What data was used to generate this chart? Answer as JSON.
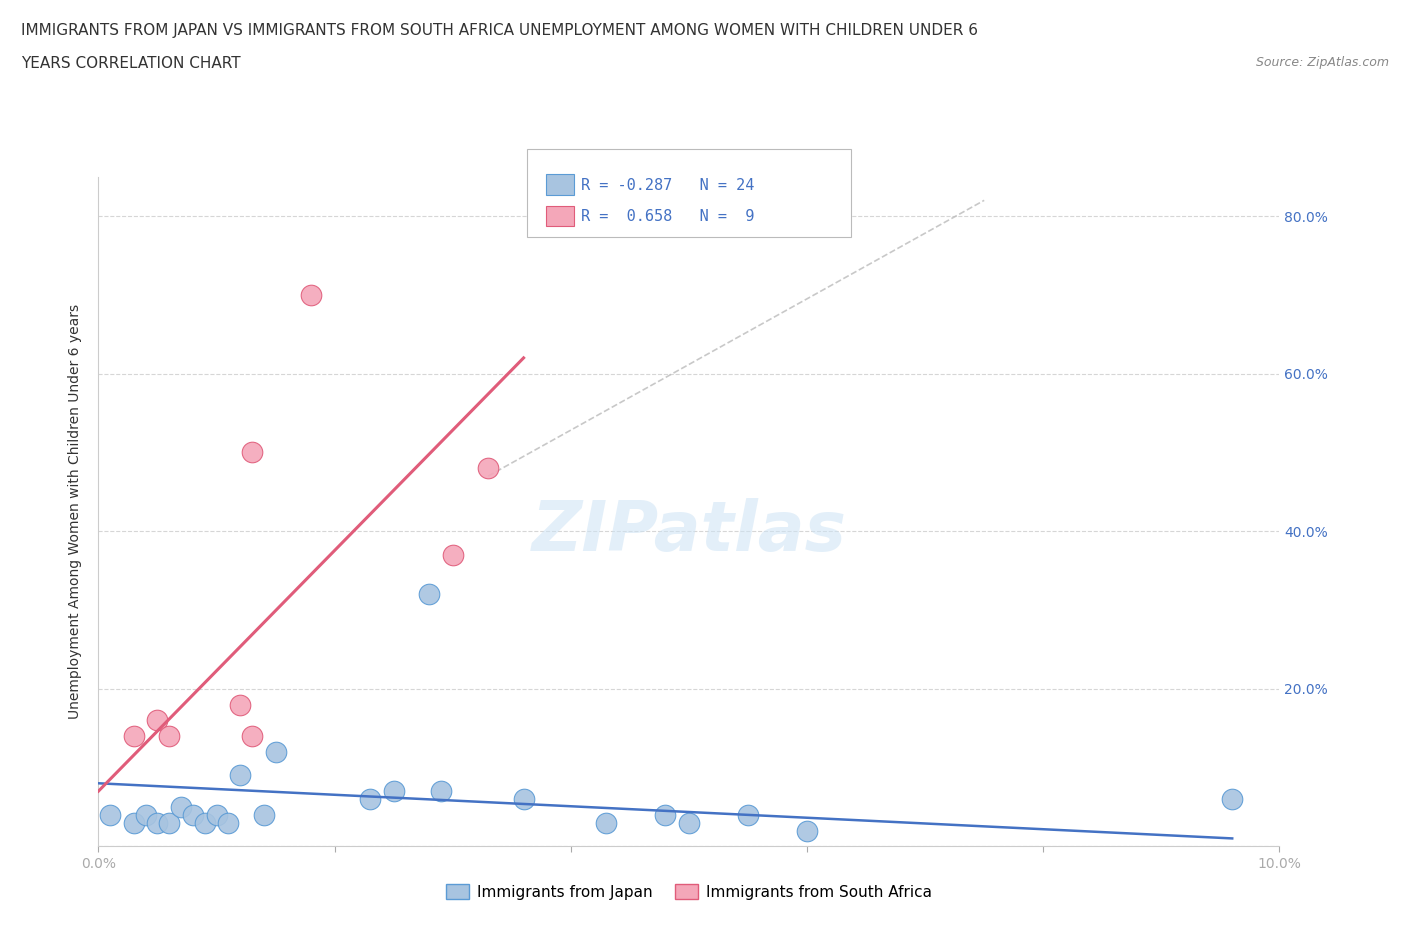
{
  "title_line1": "IMMIGRANTS FROM JAPAN VS IMMIGRANTS FROM SOUTH AFRICA UNEMPLOYMENT AMONG WOMEN WITH CHILDREN UNDER 6",
  "title_line2": "YEARS CORRELATION CHART",
  "source": "Source: ZipAtlas.com",
  "ylabel": "Unemployment Among Women with Children Under 6 years",
  "xlim": [
    0,
    0.1
  ],
  "ylim": [
    0,
    0.85
  ],
  "x_ticks": [
    0.0,
    0.02,
    0.04,
    0.06,
    0.08,
    0.1
  ],
  "x_tick_labels": [
    "0.0%",
    "",
    "",
    "",
    "",
    "10.0%"
  ],
  "y_ticks_right": [
    0.0,
    0.2,
    0.4,
    0.6,
    0.8
  ],
  "y_tick_labels_right": [
    "",
    "20.0%",
    "40.0%",
    "60.0%",
    "80.0%"
  ],
  "japan_color": "#a8c4e0",
  "japan_color_dark": "#5b9bd5",
  "sa_color": "#f4a7b9",
  "sa_color_dark": "#e05c7a",
  "japan_R": -0.287,
  "japan_N": 24,
  "sa_R": 0.658,
  "sa_N": 9,
  "japan_points_x": [
    0.001,
    0.003,
    0.004,
    0.005,
    0.006,
    0.007,
    0.008,
    0.009,
    0.01,
    0.011,
    0.012,
    0.014,
    0.015,
    0.023,
    0.025,
    0.028,
    0.029,
    0.036,
    0.043,
    0.048,
    0.05,
    0.055,
    0.06,
    0.096
  ],
  "japan_points_y": [
    0.04,
    0.03,
    0.04,
    0.03,
    0.03,
    0.05,
    0.04,
    0.03,
    0.04,
    0.03,
    0.09,
    0.04,
    0.12,
    0.06,
    0.07,
    0.32,
    0.07,
    0.06,
    0.03,
    0.04,
    0.03,
    0.04,
    0.02,
    0.06
  ],
  "sa_points_x": [
    0.003,
    0.005,
    0.006,
    0.012,
    0.013,
    0.013,
    0.018,
    0.03,
    0.033
  ],
  "sa_points_y": [
    0.14,
    0.16,
    0.14,
    0.18,
    0.14,
    0.5,
    0.7,
    0.37,
    0.48
  ],
  "sa_line_x0": 0.0,
  "sa_line_y0": 0.07,
  "sa_line_x1": 0.036,
  "sa_line_y1": 0.62,
  "japan_line_x0": 0.0,
  "japan_line_y0": 0.08,
  "japan_line_x1": 0.096,
  "japan_line_y1": 0.01,
  "dash_line_x0": 0.033,
  "dash_line_y0": 0.47,
  "dash_line_x1": 0.075,
  "dash_line_y1": 0.82,
  "watermark": "ZIPatlas",
  "background_color": "#ffffff",
  "grid_color": "#cccccc",
  "title_fontsize": 11,
  "axis_label_fontsize": 10,
  "tick_fontsize": 10,
  "legend_fontsize": 12
}
